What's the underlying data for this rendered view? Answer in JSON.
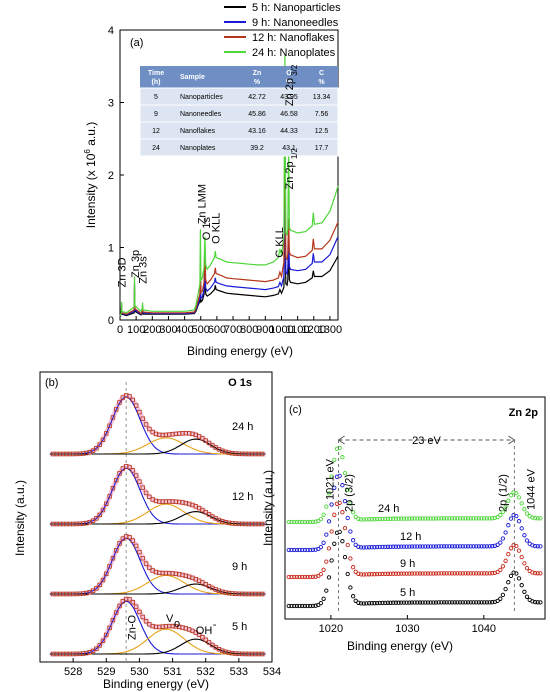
{
  "panel_a": {
    "panel_label": "(a)",
    "xlabel": "Binding energy (eV)",
    "ylabel": "Intensity (x 10",
    "ylabel_sup": "6",
    "ylabel_tail": " a.u.)",
    "legend": [
      {
        "label": "5 h:  Nanoparticles",
        "color": "#000000"
      },
      {
        "label": "9 h:  Nanoneedles",
        "color": "#1a1ad6"
      },
      {
        "label": "12 h: Nanoflakes",
        "color": "#b5361a"
      },
      {
        "label": "24 h: Nanoplates",
        "color": "#4fd63a"
      }
    ],
    "peak_labels": [
      {
        "text": "Zn 3D",
        "color": "#000000"
      },
      {
        "text": "Zn 3p",
        "color": "#000000"
      },
      {
        "text": "Zn 3s",
        "color": "#000000"
      },
      {
        "text": "Zn LMM",
        "color": "#000000"
      },
      {
        "text": "O 1s",
        "color": "#b5361a"
      },
      {
        "text": "O KLL",
        "color": "#b5361a"
      },
      {
        "text": "C KLL",
        "color": "#4fd63a"
      },
      {
        "text": "Zn 2p",
        "sub": "3/2",
        "color": "#000000"
      },
      {
        "text": "Zn 2p",
        "sub": "1/2",
        "color": "#000000"
      }
    ],
    "table": {
      "headers": [
        "Time (h)",
        "Sample",
        "Zn %",
        "O %",
        "C %"
      ],
      "rows": [
        [
          "5",
          "Nanoparticles",
          "42.72",
          "43.95",
          "13.34"
        ],
        [
          "9",
          "Nanoneedles",
          "45.86",
          "46.58",
          "7.56"
        ],
        [
          "12",
          "Nanoflakes",
          "43.16",
          "44.33",
          "12.5"
        ],
        [
          "24",
          "Nanoplates",
          "39.2",
          "43.1",
          "17.7"
        ]
      ],
      "header_color": "#6f8fc4",
      "row_color": "#dde5f2"
    }
  },
  "panel_b": {
    "panel_label": "(b)",
    "title": "O 1s",
    "title_color": "#b5361a",
    "xlabel": "Binding energy (eV)",
    "ylabel": "Intensity (a.u.)",
    "spectra_labels": [
      "24 h",
      "12 h",
      "9 h",
      "5 h"
    ],
    "component_labels": {
      "zno": "Zn-O",
      "vo": "V",
      "vo_sub": "o",
      "oh": "OH",
      "oh_sup": "-"
    }
  },
  "panel_c": {
    "panel_label": "(c)",
    "title": "Zn 2p",
    "xlabel": "Binding energy (eV)",
    "ylabel": "Intensity (a.u.)",
    "split_label": "23 eV",
    "split_color": "#1a1ad6",
    "peak1_energy": "1021 eV",
    "peak2_energy": "1044 eV",
    "peak1_label": "2p (3/2)",
    "peak2_label": "2p (1/2)",
    "spectra_labels": [
      "24 h",
      "12 h",
      "9 h",
      "5 h"
    ]
  },
  "chart_data": [
    {
      "type": "line",
      "title": "",
      "xlabel": "Binding energy (eV)",
      "ylabel": "Intensity (x 10^6 a.u.)",
      "xlim": [
        0,
        1350
      ],
      "ylim": [
        0,
        4
      ],
      "xticks": [
        0,
        100,
        200,
        300,
        400,
        500,
        600,
        700,
        800,
        900,
        1000,
        1100,
        1200,
        1300
      ],
      "yticks": [
        0,
        1,
        2,
        3,
        4
      ],
      "x": [
        0,
        8,
        10,
        12,
        40,
        88,
        90,
        92,
        130,
        138,
        140,
        142,
        200,
        300,
        400,
        460,
        470,
        480,
        495,
        498,
        501,
        510,
        520,
        526,
        531,
        540,
        560,
        585,
        590,
        595,
        620,
        660,
        700,
        750,
        800,
        850,
        900,
        950,
        980,
        990,
        1000,
        1015,
        1021,
        1027,
        1035,
        1039,
        1044,
        1049,
        1055,
        1100,
        1150,
        1190,
        1197,
        1204,
        1250,
        1300,
        1330,
        1350
      ],
      "series": [
        {
          "name": "5 h:  Nanoparticles",
          "color": "#000000",
          "values": [
            0.05,
            0.08,
            0.18,
            0.08,
            0.06,
            0.1,
            0.42,
            0.12,
            0.07,
            0.1,
            0.16,
            0.08,
            0.08,
            0.08,
            0.08,
            0.09,
            0.12,
            0.18,
            0.26,
            0.55,
            0.25,
            0.27,
            0.35,
            0.55,
            0.36,
            0.33,
            0.36,
            0.42,
            0.48,
            0.42,
            0.4,
            0.37,
            0.36,
            0.35,
            0.34,
            0.33,
            0.32,
            0.34,
            0.36,
            0.42,
            0.37,
            0.45,
            1.6,
            0.5,
            0.48,
            0.55,
            1.0,
            0.56,
            0.52,
            0.5,
            0.52,
            0.58,
            0.68,
            0.6,
            0.6,
            0.68,
            0.8,
            0.88
          ]
        },
        {
          "name": "9 h:  Nanoneedles",
          "color": "#1a1ad6",
          "values": [
            0.05,
            0.08,
            0.2,
            0.09,
            0.07,
            0.12,
            0.48,
            0.14,
            0.08,
            0.12,
            0.18,
            0.1,
            0.09,
            0.09,
            0.09,
            0.1,
            0.14,
            0.2,
            0.3,
            0.62,
            0.3,
            0.32,
            0.42,
            0.7,
            0.44,
            0.4,
            0.44,
            0.52,
            0.58,
            0.52,
            0.5,
            0.47,
            0.46,
            0.45,
            0.44,
            0.43,
            0.42,
            0.44,
            0.46,
            0.52,
            0.47,
            0.6,
            1.85,
            0.66,
            0.64,
            0.72,
            1.2,
            0.74,
            0.7,
            0.68,
            0.7,
            0.78,
            0.92,
            0.8,
            0.8,
            0.9,
            1.05,
            1.15
          ]
        },
        {
          "name": "12 h: Nanoflakes",
          "color": "#b5361a",
          "values": [
            0.05,
            0.09,
            0.22,
            0.1,
            0.08,
            0.14,
            0.52,
            0.16,
            0.09,
            0.13,
            0.2,
            0.11,
            0.1,
            0.1,
            0.1,
            0.11,
            0.16,
            0.24,
            0.36,
            0.9,
            0.38,
            0.4,
            0.52,
            0.95,
            0.55,
            0.5,
            0.55,
            0.64,
            0.72,
            0.64,
            0.62,
            0.58,
            0.57,
            0.56,
            0.55,
            0.54,
            0.53,
            0.55,
            0.58,
            0.66,
            0.6,
            0.8,
            3.05,
            0.86,
            0.84,
            0.92,
            1.4,
            0.94,
            0.9,
            0.86,
            0.88,
            0.96,
            1.12,
            0.98,
            0.98,
            1.1,
            1.25,
            1.35
          ]
        },
        {
          "name": "24 h: Nanoplates",
          "color": "#4fd63a",
          "values": [
            0.05,
            0.1,
            0.25,
            0.12,
            0.1,
            0.18,
            0.6,
            0.2,
            0.12,
            0.16,
            0.24,
            0.14,
            0.12,
            0.12,
            0.12,
            0.14,
            0.2,
            0.32,
            0.5,
            1.25,
            0.55,
            0.58,
            0.72,
            1.15,
            0.76,
            0.7,
            0.76,
            0.86,
            0.95,
            0.86,
            0.84,
            0.8,
            0.79,
            0.78,
            0.77,
            0.76,
            0.76,
            0.8,
            0.86,
            0.98,
            0.9,
            1.15,
            3.65,
            1.2,
            1.18,
            1.26,
            2.4,
            1.28,
            1.24,
            1.2,
            1.22,
            1.3,
            1.48,
            1.32,
            1.34,
            1.5,
            1.7,
            1.85
          ]
        }
      ]
    },
    {
      "type": "scatter",
      "title": "O 1s",
      "xlabel": "Binding energy (eV)",
      "ylabel": "Intensity (a.u.)",
      "xlim": [
        527,
        534
      ],
      "xticks": [
        528,
        529,
        530,
        531,
        532,
        533,
        534
      ],
      "reference_line_x": 529.6,
      "components": [
        {
          "name": "Zn-O",
          "color": "#1a1ad6",
          "center": 529.6
        },
        {
          "name": "Vo",
          "color": "#e6a21a",
          "center": 530.8
        },
        {
          "name": "OH-",
          "color": "#000000",
          "center": 531.7
        }
      ],
      "series": [
        {
          "name": "24 h",
          "peak_height": 1.0,
          "zno": 0.92,
          "vo": 0.26,
          "oh": 0.24
        },
        {
          "name": "12 h",
          "peak_height": 1.0,
          "zno": 0.9,
          "vo": 0.32,
          "oh": 0.2
        },
        {
          "name": "9 h",
          "peak_height": 1.0,
          "zno": 0.9,
          "vo": 0.3,
          "oh": 0.16
        },
        {
          "name": "5 h",
          "peak_height": 1.0,
          "zno": 0.85,
          "vo": 0.4,
          "oh": 0.24
        }
      ]
    },
    {
      "type": "scatter",
      "title": "Zn 2p",
      "xlabel": "Binding energy (eV)",
      "ylabel": "Intensity (a.u.)",
      "xlim": [
        1014,
        1048
      ],
      "xticks": [
        1020,
        1030,
        1040
      ],
      "peaks": [
        1021,
        1044
      ],
      "series": [
        {
          "name": "24 h",
          "color": "#4fd63a",
          "peak1": 1.0,
          "peak2": 0.35
        },
        {
          "name": "12 h",
          "color": "#1a1ad6",
          "peak1": 1.0,
          "peak2": 0.42
        },
        {
          "name": "9 h",
          "color": "#c8281a",
          "peak1": 1.0,
          "peak2": 0.38
        },
        {
          "name": "5 h",
          "color": "#000000",
          "peak1": 1.0,
          "peak2": 0.4
        }
      ]
    }
  ]
}
